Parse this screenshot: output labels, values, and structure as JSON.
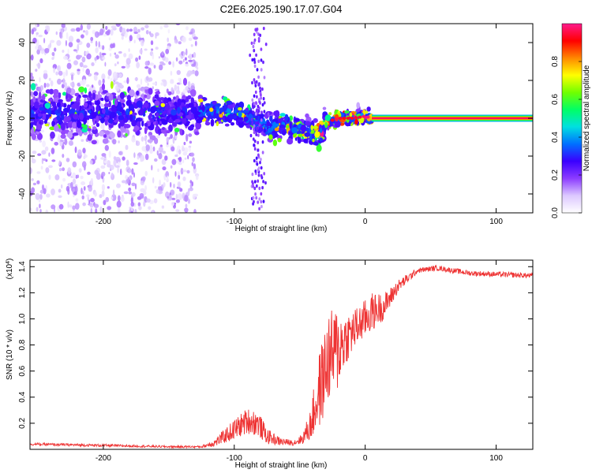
{
  "title": "C2E6.2025.190.17.07.G04",
  "colors": {
    "snr_line": "#ee3333",
    "spec_background": "#ffffff"
  },
  "chart_data": [
    {
      "type": "heatmap",
      "xlabel": "Height of straight line (km)",
      "ylabel": "Frequency (Hz)",
      "xlim": [
        -256,
        128
      ],
      "ylim": [
        -50,
        50
      ],
      "x_ticks": [
        -200,
        -100,
        0,
        100
      ],
      "x_tick_labels": [
        "-200",
        "-100",
        "0",
        "100"
      ],
      "y_ticks": [
        -40,
        -20,
        0,
        20,
        40
      ],
      "y_tick_labels": [
        "-40",
        "-20",
        "0",
        "20",
        "40"
      ],
      "colorbar": {
        "label": "Normalized spectral amplitude",
        "range": [
          0,
          1
        ],
        "ticks": [
          0.0,
          0.2,
          0.4,
          0.6,
          0.8
        ],
        "tick_labels": [
          "0.0",
          "0.2",
          "0.4",
          "0.6",
          "0.8"
        ],
        "colormap": [
          "#ffffff",
          "#dcc8ff",
          "#8c3cff",
          "#3a00ff",
          "#0070ff",
          "#00e0e0",
          "#00ff66",
          "#70ff00",
          "#ffff00",
          "#ff8800",
          "#ff0000",
          "#ff1a8c"
        ]
      },
      "noise_region": {
        "x": [
          -256,
          -128
        ],
        "y": [
          -50,
          50
        ]
      },
      "band_points": [
        {
          "x": -255,
          "y": 3
        },
        {
          "x": -200,
          "y": 3
        },
        {
          "x": -128,
          "y": 3
        },
        {
          "x": -120,
          "y": 4
        },
        {
          "x": -100,
          "y": 3
        },
        {
          "x": -85,
          "y": 0
        },
        {
          "x": -75,
          "y": -5
        },
        {
          "x": -60,
          "y": -4
        },
        {
          "x": -50,
          "y": -6
        },
        {
          "x": -40,
          "y": -8
        },
        {
          "x": -35,
          "y": -9
        },
        {
          "x": -30,
          "y": -2
        },
        {
          "x": -20,
          "y": 0
        },
        {
          "x": -10,
          "y": 0
        },
        {
          "x": 0,
          "y": 1
        },
        {
          "x": 5,
          "y": 0
        },
        {
          "x": 128,
          "y": 0
        }
      ],
      "line_from_x": 5,
      "line_y": 0
    },
    {
      "type": "line",
      "xlabel": "Height of straight line (km)",
      "ylabel": "SNR (10 * v/v)",
      "y_scale_label": "(x10",
      "y_scale_exponent": "4",
      "y_scale_suffix": ")",
      "xlim": [
        -256,
        128
      ],
      "ylim": [
        0,
        1.45
      ],
      "x_ticks": [
        -200,
        -100,
        0,
        100
      ],
      "x_tick_labels": [
        "-200",
        "-100",
        "0",
        "100"
      ],
      "y_ticks": [
        0.2,
        0.4,
        0.6,
        0.8,
        1.0,
        1.2,
        1.4
      ],
      "y_tick_labels": [
        "0.2",
        "0.4",
        "0.6",
        "0.8",
        "1.0",
        "1.2",
        "1.4"
      ],
      "envelope": [
        {
          "x": -256,
          "y": 0.04,
          "noise": 0.01
        },
        {
          "x": -200,
          "y": 0.03,
          "noise": 0.01
        },
        {
          "x": -150,
          "y": 0.02,
          "noise": 0.008
        },
        {
          "x": -125,
          "y": 0.02,
          "noise": 0.008
        },
        {
          "x": -115,
          "y": 0.05,
          "noise": 0.03
        },
        {
          "x": -100,
          "y": 0.15,
          "noise": 0.08
        },
        {
          "x": -90,
          "y": 0.22,
          "noise": 0.1
        },
        {
          "x": -82,
          "y": 0.2,
          "noise": 0.1
        },
        {
          "x": -75,
          "y": 0.1,
          "noise": 0.06
        },
        {
          "x": -65,
          "y": 0.06,
          "noise": 0.03
        },
        {
          "x": -55,
          "y": 0.05,
          "noise": 0.02
        },
        {
          "x": -48,
          "y": 0.08,
          "noise": 0.04
        },
        {
          "x": -42,
          "y": 0.18,
          "noise": 0.12
        },
        {
          "x": -35,
          "y": 0.45,
          "noise": 0.3
        },
        {
          "x": -28,
          "y": 0.7,
          "noise": 0.35
        },
        {
          "x": -22,
          "y": 0.75,
          "noise": 0.35
        },
        {
          "x": -15,
          "y": 0.85,
          "noise": 0.2
        },
        {
          "x": -5,
          "y": 0.95,
          "noise": 0.15
        },
        {
          "x": 5,
          "y": 1.05,
          "noise": 0.15
        },
        {
          "x": 15,
          "y": 1.1,
          "noise": 0.1
        },
        {
          "x": 25,
          "y": 1.25,
          "noise": 0.05
        },
        {
          "x": 40,
          "y": 1.37,
          "noise": 0.02
        },
        {
          "x": 55,
          "y": 1.39,
          "noise": 0.02
        },
        {
          "x": 80,
          "y": 1.35,
          "noise": 0.02
        },
        {
          "x": 128,
          "y": 1.33,
          "noise": 0.02
        }
      ]
    }
  ]
}
